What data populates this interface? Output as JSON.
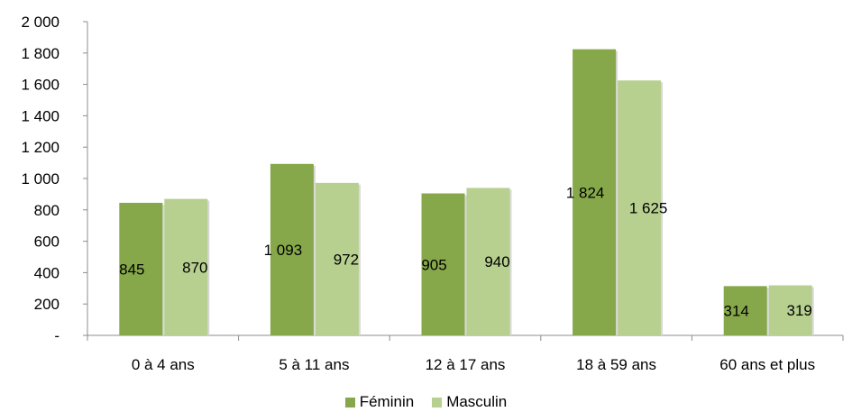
{
  "chart_data": {
    "type": "bar",
    "categories": [
      "0 à 4 ans",
      "5 à 11 ans",
      "12 à 17 ans",
      "18 à 59 ans",
      "60 ans et plus"
    ],
    "series": [
      {
        "name": "Féminin",
        "color": "#86a84a",
        "values": [
          845,
          1093,
          905,
          1824,
          314
        ],
        "labels": [
          "845",
          "1 093",
          "905",
          "1 824",
          "314"
        ]
      },
      {
        "name": "Masculin",
        "color": "#b7d08f",
        "values": [
          870,
          972,
          940,
          1625,
          319
        ],
        "labels": [
          "870",
          "972",
          "940",
          "1 625",
          "319"
        ]
      }
    ],
    "yticks": [
      0,
      200,
      400,
      600,
      800,
      1000,
      1200,
      1400,
      1600,
      1800,
      2000
    ],
    "ytick_labels": [
      "-",
      "200",
      "400",
      "600",
      "800",
      "1 000",
      "1 200",
      "1 400",
      "1 600",
      "1 800",
      "2 000"
    ],
    "ylim": [
      0,
      2000
    ],
    "grid": false,
    "legend_position": "bottom"
  }
}
